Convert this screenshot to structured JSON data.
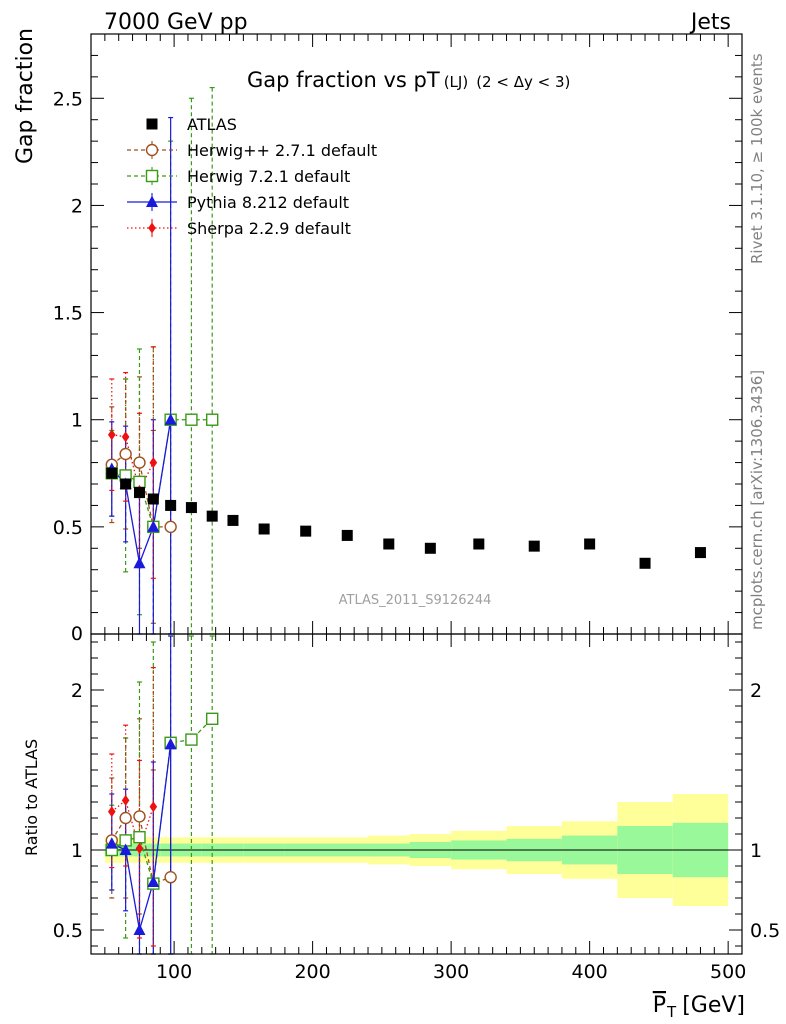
{
  "header": {
    "left": "7000 GeV pp",
    "right": "Jets"
  },
  "side_labels": {
    "rivet": "Rivet 3.1.10, ≥ 100k events",
    "mcplots": "mcplots.cern.ch [arXiv:1306.3436]"
  },
  "watermark": "ATLAS_2011_S9126244",
  "colors": {
    "atlas": "#000000",
    "herwigpp": "#a0501e",
    "herwig7": "#3a9a18",
    "pythia": "#1a1adc",
    "sherpa": "#ee1111",
    "band_inner": "#99f899",
    "band_outer": "#ffff99"
  },
  "chart_data": [
    {
      "panel": "main",
      "type": "scatter",
      "title": "Gap fraction vs pT",
      "title_sub": "(LJ)",
      "title_cond": "(2 < Δy < 3)",
      "xlabel": "P_T [GeV]",
      "ylabel": "Gap fraction",
      "xlim": [
        40,
        510
      ],
      "ylim": [
        0,
        2.8
      ],
      "xticks": [
        100,
        200,
        300,
        400,
        500
      ],
      "yticks": [
        0.5,
        1,
        1.5,
        2,
        2.5
      ],
      "ytick_labels": [
        "0.5",
        "1",
        "1.5",
        "2",
        "2.5"
      ],
      "y_zero_label": "0",
      "legend_position": "top-left",
      "series": [
        {
          "name": "ATLAS",
          "marker": "square",
          "x": [
            55,
            65,
            75,
            85,
            97.5,
            112.5,
            127.5,
            142.5,
            165,
            195,
            225,
            255,
            285,
            320,
            360,
            400,
            440,
            480
          ],
          "y": [
            0.75,
            0.7,
            0.66,
            0.63,
            0.6,
            0.59,
            0.55,
            0.53,
            0.49,
            0.48,
            0.46,
            0.42,
            0.4,
            0.42,
            0.41,
            0.42,
            0.33,
            0.38
          ]
        },
        {
          "name": "Herwig++ 2.7.1 default",
          "marker": "open-circle",
          "x": [
            55,
            65,
            75,
            85,
            97.5
          ],
          "y": [
            0.79,
            0.84,
            0.8,
            0.5,
            0.5
          ],
          "yerr": [
            0.27,
            0.35,
            0.4,
            0.45,
            0.5
          ]
        },
        {
          "name": "Herwig 7.2.1 default",
          "marker": "open-square",
          "x": [
            55,
            65,
            75,
            85,
            97.5,
            112.5,
            127.5
          ],
          "y": [
            0.75,
            0.74,
            0.71,
            0.5,
            1.0,
            1.0,
            1.0
          ],
          "yerr": [
            0.2,
            0.45,
            0.62,
            0.84,
            1.3,
            1.5,
            1.55
          ]
        },
        {
          "name": "Pythia 8.212 default",
          "marker": "triangle",
          "x": [
            55,
            65,
            75,
            85,
            97.5
          ],
          "y": [
            0.77,
            0.7,
            0.33,
            0.5,
            1.0
          ],
          "yerr": [
            0.22,
            0.27,
            0.33,
            0.5,
            1.41
          ]
        },
        {
          "name": "Sherpa 2.2.9 default",
          "marker": "diamond",
          "x": [
            55,
            65,
            75,
            85
          ],
          "y": [
            0.93,
            0.92,
            0.67,
            0.8
          ],
          "yerr": [
            0.26,
            0.3,
            0.36,
            0.54
          ]
        }
      ]
    },
    {
      "panel": "ratio",
      "type": "scatter",
      "ylabel": "Ratio to ATLAS",
      "xlim": [
        40,
        510
      ],
      "ylim": [
        0.35,
        2.35
      ],
      "yticks": [
        0.5,
        1,
        2
      ],
      "ytick_labels": [
        "0.5",
        "1",
        "2"
      ],
      "xtick_labels": [
        "100",
        "200",
        "300",
        "400",
        "500"
      ],
      "band_edges": [
        50,
        60,
        70,
        80,
        90,
        105,
        120,
        135,
        150,
        180,
        210,
        240,
        270,
        300,
        340,
        380,
        420,
        460,
        500
      ],
      "band_inner": [
        0.04,
        0.04,
        0.04,
        0.04,
        0.04,
        0.04,
        0.04,
        0.04,
        0.04,
        0.04,
        0.04,
        0.04,
        0.05,
        0.06,
        0.07,
        0.09,
        0.15,
        0.17
      ],
      "band_outer": [
        0.08,
        0.08,
        0.08,
        0.08,
        0.08,
        0.08,
        0.08,
        0.08,
        0.08,
        0.08,
        0.08,
        0.09,
        0.1,
        0.12,
        0.15,
        0.18,
        0.3,
        0.35
      ],
      "series": [
        {
          "name": "Herwig++ 2.7.1 default",
          "x": [
            55,
            65,
            75,
            85,
            97.5
          ],
          "y": [
            1.06,
            1.2,
            1.21,
            0.79,
            0.83
          ],
          "ylo": [
            0.7,
            0.7,
            0.6,
            0.1,
            0.1
          ],
          "yhi": [
            1.45,
            1.7,
            1.82,
            1.5,
            1.66
          ]
        },
        {
          "name": "Herwig 7.2.1 default",
          "x": [
            55,
            65,
            75,
            85,
            97.5,
            112.5,
            127.5
          ],
          "y": [
            1.0,
            1.06,
            1.08,
            0.79,
            1.67,
            1.69,
            1.82
          ],
          "ylo": [
            0.75,
            0.45,
            0.12,
            0.1,
            0.1,
            0.1,
            0.1
          ],
          "yhi": [
            1.28,
            1.7,
            2.05,
            2.3,
            2.6,
            2.6,
            2.6
          ]
        },
        {
          "name": "Pythia 8.212 default",
          "x": [
            55,
            65,
            75,
            85,
            97.5
          ],
          "y": [
            1.04,
            1.0,
            0.5,
            0.8,
            1.66
          ],
          "ylo": [
            0.75,
            0.62,
            0.1,
            0.1,
            0.1
          ],
          "yhi": [
            1.35,
            1.38,
            1.0,
            1.55,
            2.6
          ]
        },
        {
          "name": "Sherpa 2.2.9 default",
          "x": [
            55,
            65,
            75,
            85
          ],
          "y": [
            1.24,
            1.31,
            1.01,
            1.27
          ],
          "ylo": [
            0.89,
            0.9,
            0.45,
            0.4
          ],
          "yhi": [
            1.6,
            1.78,
            1.56,
            2.14
          ]
        }
      ]
    }
  ]
}
